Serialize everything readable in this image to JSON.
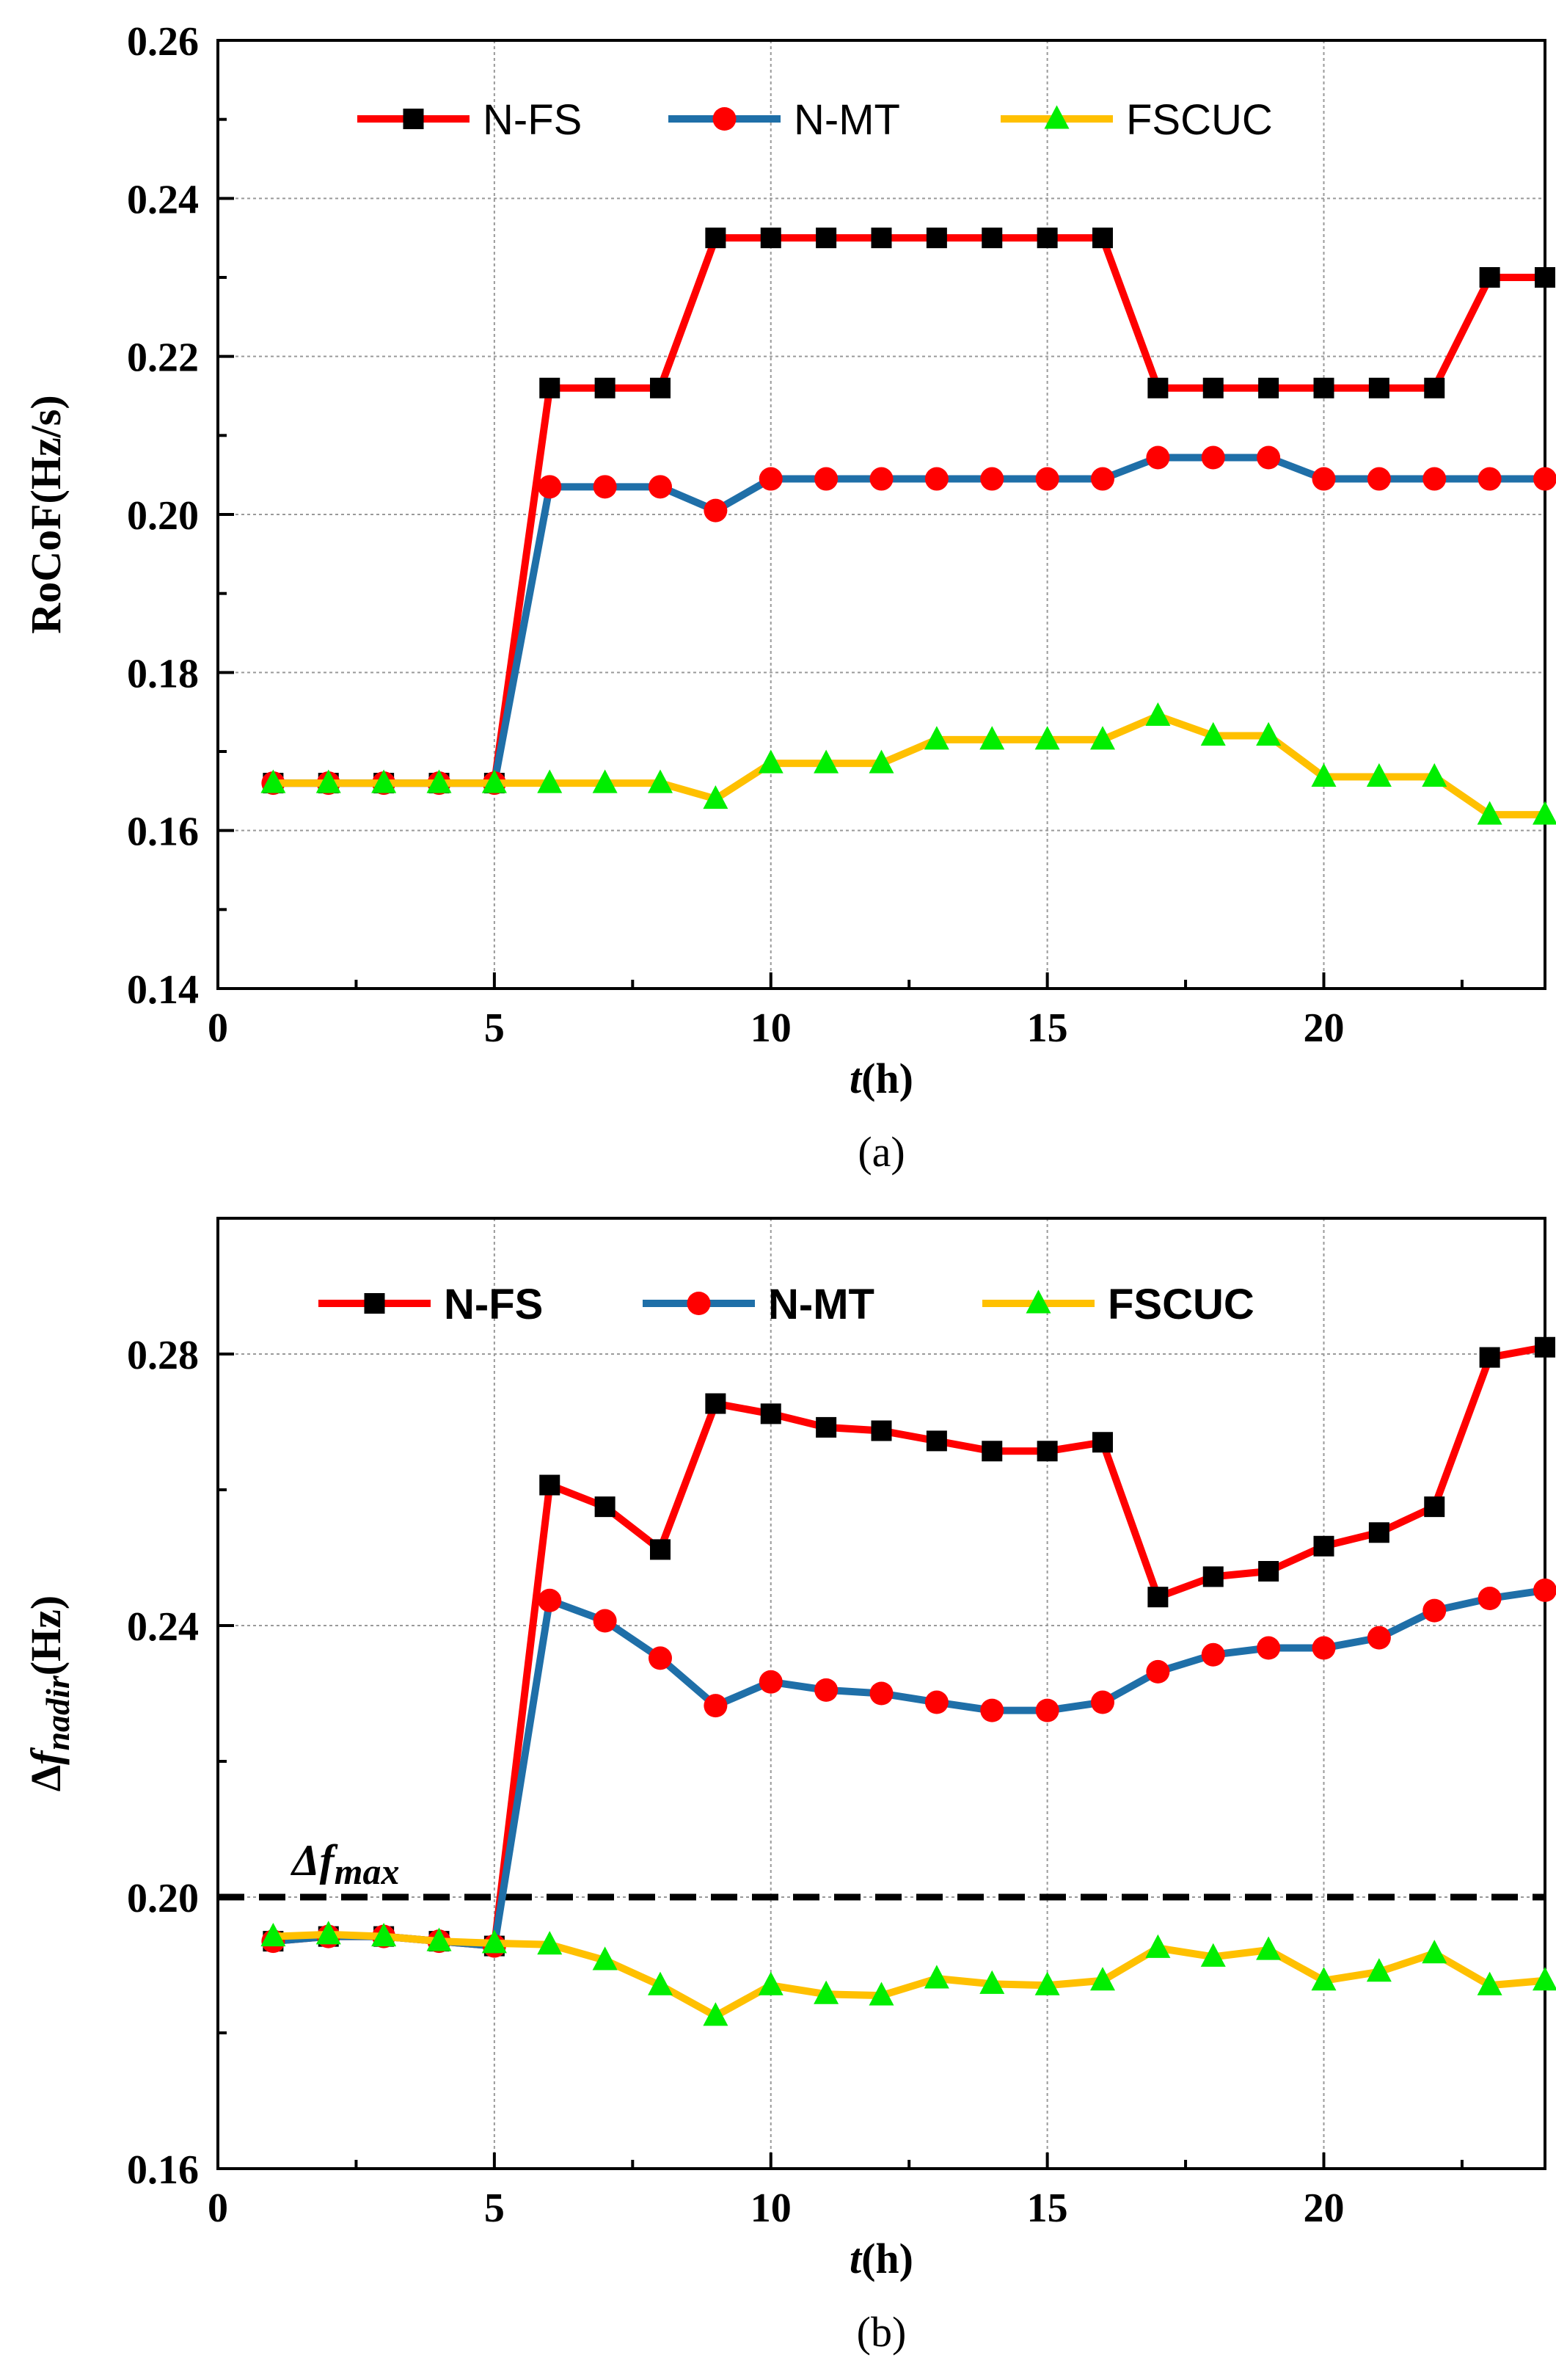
{
  "colors": {
    "nfs": "#ff0000",
    "nmt": "#1f6fa8",
    "fscuc": "#ffc000",
    "nfs_marker": "#000000",
    "nmt_marker": "#ff0000",
    "fscuc_marker": "#00ee00",
    "grid": "#9a9a9a",
    "axis": "#000000"
  },
  "chart_data": [
    {
      "type": "line",
      "caption": "(a)",
      "xlabel_italic": "t",
      "xlabel_rest": "(h)",
      "ylabel": "RoCoF(Hz/s)",
      "xlim": [
        0,
        24
      ],
      "ylim": [
        0.14,
        0.26
      ],
      "xticks": [
        "0",
        "5",
        "10",
        "15",
        "20"
      ],
      "yticks": [
        "0.14",
        "0.16",
        "0.18",
        "0.20",
        "0.22",
        "0.24",
        "0.26"
      ],
      "x": [
        1,
        2,
        3,
        4,
        5,
        6,
        7,
        8,
        9,
        10,
        11,
        12,
        13,
        14,
        15,
        16,
        17,
        18,
        19,
        20,
        21,
        22,
        23,
        24
      ],
      "legend_bold": false,
      "legend": [
        "N-FS",
        "N-MT",
        "FSCUC"
      ],
      "series": [
        {
          "name": "N-FS",
          "marker": "square",
          "values": [
            0.166,
            0.166,
            0.166,
            0.166,
            0.166,
            0.216,
            0.216,
            0.216,
            0.235,
            0.235,
            0.235,
            0.235,
            0.235,
            0.235,
            0.235,
            0.235,
            0.216,
            0.216,
            0.216,
            0.216,
            0.216,
            0.216,
            0.23,
            0.23
          ]
        },
        {
          "name": "N-MT",
          "marker": "circle",
          "values": [
            0.166,
            0.166,
            0.166,
            0.166,
            0.166,
            0.2035,
            0.2035,
            0.2035,
            0.2005,
            0.2045,
            0.2045,
            0.2045,
            0.2045,
            0.2045,
            0.2045,
            0.2045,
            0.2072,
            0.2072,
            0.2072,
            0.2045,
            0.2045,
            0.2045,
            0.2045,
            0.2045
          ]
        },
        {
          "name": "FSCUC",
          "marker": "triangle",
          "values": [
            0.166,
            0.166,
            0.166,
            0.166,
            0.166,
            0.166,
            0.166,
            0.166,
            0.164,
            0.1685,
            0.1685,
            0.1685,
            0.1715,
            0.1715,
            0.1715,
            0.1715,
            0.1745,
            0.172,
            0.172,
            0.1668,
            0.1668,
            0.1668,
            0.162,
            0.162
          ]
        }
      ]
    },
    {
      "type": "line",
      "caption": "(b)",
      "xlabel_italic": "t",
      "xlabel_rest": "(h)",
      "ylabel_delta": "Δ",
      "ylabel_f": "f",
      "ylabel_sub": "nadir",
      "ylabel_unit": "(Hz)",
      "xlim": [
        0,
        24
      ],
      "ylim": [
        0.16,
        0.3
      ],
      "xticks": [
        "0",
        "5",
        "10",
        "15",
        "20"
      ],
      "yticks": [
        "0.16",
        "0.20",
        "0.24",
        "0.28"
      ],
      "x": [
        1,
        2,
        3,
        4,
        5,
        6,
        7,
        8,
        9,
        10,
        11,
        12,
        13,
        14,
        15,
        16,
        17,
        18,
        19,
        20,
        21,
        22,
        23,
        24
      ],
      "legend_bold": true,
      "legend": [
        "N-FS",
        "N-MT",
        "FSCUC"
      ],
      "reference_line": {
        "value": 0.2,
        "label_delta": "Δ",
        "label_f": "f",
        "label_sub": "max"
      },
      "series": [
        {
          "name": "N-FS",
          "marker": "square",
          "values": [
            0.1935,
            0.1942,
            0.1942,
            0.1935,
            0.1928,
            0.2607,
            0.2575,
            0.2512,
            0.2727,
            0.2712,
            0.2692,
            0.2687,
            0.2672,
            0.2657,
            0.2657,
            0.267,
            0.2442,
            0.2472,
            0.248,
            0.2517,
            0.2537,
            0.2575,
            0.2795,
            0.281
          ]
        },
        {
          "name": "N-MT",
          "marker": "circle",
          "values": [
            0.1935,
            0.1942,
            0.1942,
            0.1935,
            0.1928,
            0.2437,
            0.2407,
            0.2352,
            0.2282,
            0.2317,
            0.2305,
            0.23,
            0.2287,
            0.2275,
            0.2275,
            0.2287,
            0.2332,
            0.2357,
            0.2367,
            0.2367,
            0.2382,
            0.2422,
            0.244,
            0.2452
          ]
        },
        {
          "name": "FSCUC",
          "marker": "triangle",
          "values": [
            0.1942,
            0.1945,
            0.1942,
            0.1935,
            0.1932,
            0.193,
            0.1907,
            0.187,
            0.1825,
            0.187,
            0.1857,
            0.1855,
            0.188,
            0.1872,
            0.187,
            0.1877,
            0.1925,
            0.1912,
            0.1922,
            0.1877,
            0.189,
            0.1917,
            0.187,
            0.1877
          ]
        }
      ]
    }
  ]
}
